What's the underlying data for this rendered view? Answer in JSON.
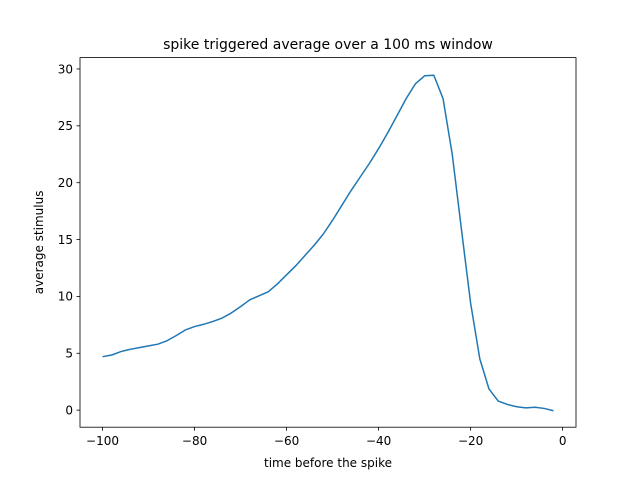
{
  "chart_data": {
    "type": "line",
    "title": "spike triggered average over a 100 ms window",
    "xlabel": "time before the spike",
    "ylabel": "average stimulus",
    "xlim": [
      -104.9,
      2.9
    ],
    "ylim": [
      -1.5,
      31.0
    ],
    "xticks": [
      -100,
      -80,
      -60,
      -40,
      -20,
      0
    ],
    "xtick_labels": [
      "−100",
      "−80",
      "−60",
      "−40",
      "−20",
      "0"
    ],
    "yticks": [
      0,
      5,
      10,
      15,
      20,
      25,
      30
    ],
    "ytick_labels": [
      "0",
      "5",
      "10",
      "15",
      "20",
      "25",
      "30"
    ],
    "grid": false,
    "series": [
      {
        "color": "#1f77b4",
        "x": [
          -100,
          -98,
          -96,
          -94,
          -92,
          -90,
          -88,
          -86,
          -84,
          -82,
          -80,
          -78,
          -76,
          -74,
          -72,
          -70,
          -68,
          -66,
          -64,
          -62,
          -60,
          -58,
          -56,
          -54,
          -52,
          -50,
          -48,
          -46,
          -44,
          -42,
          -40,
          -38,
          -36,
          -34,
          -32,
          -30,
          -28,
          -26,
          -24,
          -22,
          -20,
          -18,
          -16,
          -14,
          -12,
          -10,
          -8,
          -6,
          -4,
          -2
        ],
        "y": [
          4.7,
          4.85,
          5.15,
          5.35,
          5.5,
          5.65,
          5.8,
          6.1,
          6.55,
          7.05,
          7.35,
          7.55,
          7.8,
          8.1,
          8.55,
          9.1,
          9.7,
          10.05,
          10.4,
          11.1,
          11.9,
          12.7,
          13.6,
          14.5,
          15.5,
          16.7,
          18.0,
          19.3,
          20.5,
          21.7,
          23.0,
          24.4,
          25.9,
          27.4,
          28.7,
          29.4,
          29.45,
          27.4,
          22.5,
          15.9,
          9.4,
          4.5,
          1.85,
          0.8,
          0.5,
          0.3,
          0.2,
          0.25,
          0.15,
          -0.05
        ]
      }
    ]
  }
}
